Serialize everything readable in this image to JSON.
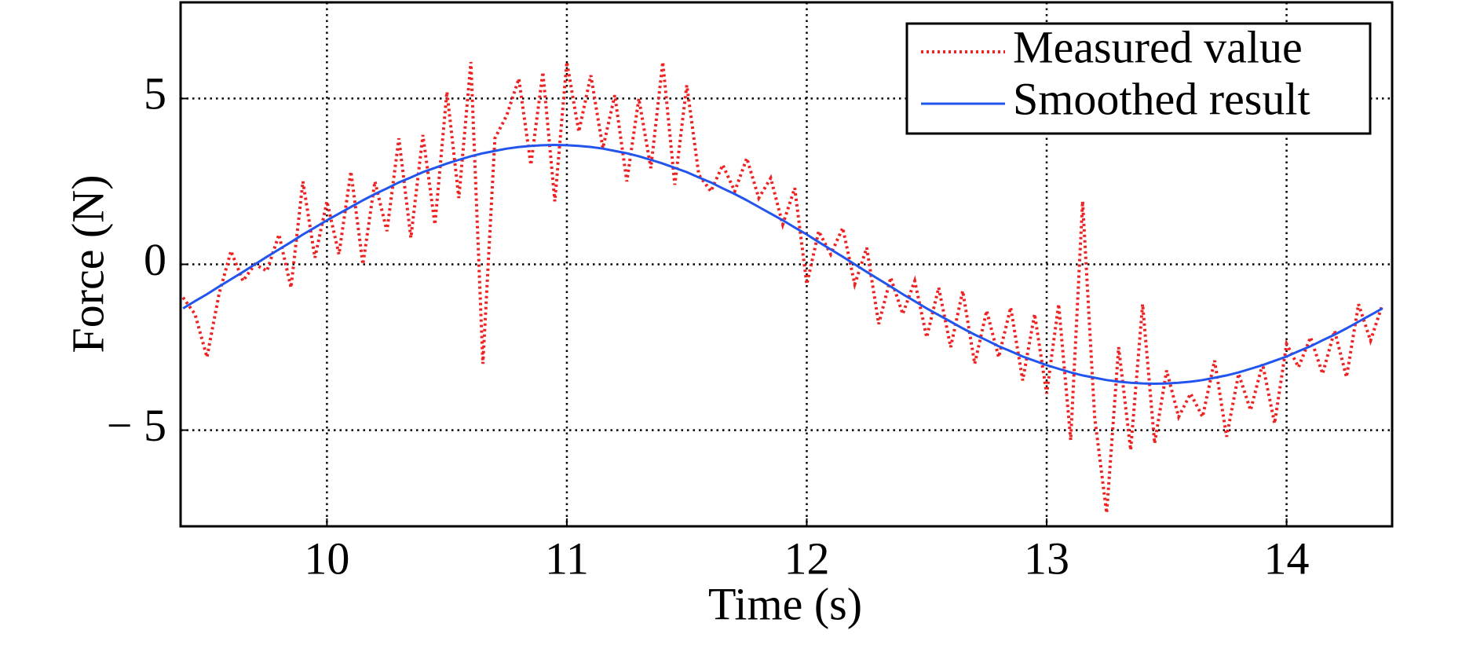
{
  "chart_data": {
    "type": "line",
    "x_label": "Time (s)",
    "y_label": "Force (N)",
    "x": [
      9.4,
      9.45,
      9.5,
      9.55,
      9.6,
      9.65,
      9.7,
      9.75,
      9.8,
      9.85,
      9.9,
      9.95,
      10,
      10.05,
      10.1,
      10.15,
      10.2,
      10.25,
      10.3,
      10.35,
      10.4,
      10.45,
      10.5,
      10.55,
      10.6,
      10.65,
      10.7,
      10.75,
      10.8,
      10.85,
      10.9,
      10.95,
      11,
      11.05,
      11.1,
      11.15,
      11.2,
      11.25,
      11.3,
      11.35,
      11.4,
      11.45,
      11.5,
      11.55,
      11.6,
      11.65,
      11.7,
      11.75,
      11.8,
      11.85,
      11.9,
      11.95,
      12,
      12.05,
      12.1,
      12.15,
      12.2,
      12.25,
      12.3,
      12.35,
      12.4,
      12.45,
      12.5,
      12.55,
      12.6,
      12.65,
      12.7,
      12.75,
      12.8,
      12.85,
      12.9,
      12.95,
      13,
      13.05,
      13.1,
      13.15,
      13.2,
      13.25,
      13.3,
      13.35,
      13.4,
      13.45,
      13.5,
      13.55,
      13.6,
      13.65,
      13.7,
      13.75,
      13.8,
      13.85,
      13.9,
      13.95,
      14,
      14.05,
      14.1,
      14.15,
      14.2,
      14.25,
      14.3,
      14.35,
      14.4
    ],
    "series": [
      {
        "name": "Measured value",
        "color": "#ee2222",
        "dash": "dotted",
        "values": [
          -1.0,
          -1.5,
          -2.8,
          -0.9,
          0.4,
          -0.5,
          0.0,
          -0.2,
          0.9,
          -0.7,
          2.5,
          0.2,
          1.9,
          0.3,
          2.8,
          0.0,
          2.5,
          1.0,
          3.8,
          0.8,
          3.9,
          1.2,
          5.2,
          2.0,
          6.1,
          -3.0,
          3.8,
          4.5,
          5.6,
          3.0,
          5.8,
          1.9,
          6.1,
          4.0,
          5.7,
          3.5,
          5.1,
          2.5,
          5.0,
          2.9,
          6.1,
          2.4,
          5.4,
          2.7,
          2.2,
          3.0,
          2.2,
          3.2,
          2.0,
          2.6,
          1.2,
          2.3,
          -0.6,
          1.0,
          0.3,
          1.1,
          -0.6,
          0.5,
          -1.8,
          -0.4,
          -1.5,
          -0.5,
          -2.2,
          -0.7,
          -2.5,
          -0.8,
          -3.0,
          -1.4,
          -2.8,
          -1.3,
          -3.5,
          -1.5,
          -3.9,
          -1.2,
          -5.3,
          1.9,
          -4.6,
          -7.5,
          -2.5,
          -5.6,
          -1.2,
          -5.4,
          -3.2,
          -4.6,
          -3.9,
          -4.6,
          -2.9,
          -5.2,
          -3.3,
          -4.4,
          -3.0,
          -4.8,
          -2.4,
          -3.1,
          -2.2,
          -3.3,
          -2.0,
          -3.4,
          -1.2,
          -2.3,
          -1.2
        ]
      },
      {
        "name": "Smoothed result",
        "color": "#2255ee",
        "dash": "solid",
        "values": [
          -1.33,
          -1.11,
          -0.9,
          -0.67,
          -0.45,
          -0.23,
          0,
          0.23,
          0.45,
          0.67,
          0.9,
          1.11,
          1.33,
          1.53,
          1.73,
          1.93,
          2.12,
          2.29,
          2.47,
          2.62,
          2.78,
          2.91,
          3.04,
          3.15,
          3.26,
          3.35,
          3.42,
          3.49,
          3.54,
          3.57,
          3.59,
          3.6,
          3.59,
          3.57,
          3.54,
          3.49,
          3.42,
          3.35,
          3.26,
          3.15,
          3.04,
          2.91,
          2.78,
          2.62,
          2.47,
          2.29,
          2.12,
          1.93,
          1.73,
          1.53,
          1.33,
          1.11,
          0.9,
          0.67,
          0.45,
          0.23,
          0,
          -0.23,
          -0.45,
          -0.67,
          -0.9,
          -1.11,
          -1.33,
          -1.53,
          -1.73,
          -1.93,
          -2.12,
          -2.29,
          -2.47,
          -2.62,
          -2.78,
          -2.91,
          -3.04,
          -3.15,
          -3.26,
          -3.35,
          -3.42,
          -3.49,
          -3.54,
          -3.57,
          -3.59,
          -3.6,
          -3.59,
          -3.57,
          -3.54,
          -3.49,
          -3.42,
          -3.35,
          -3.26,
          -3.15,
          -3.04,
          -2.91,
          -2.78,
          -2.62,
          -2.47,
          -2.29,
          -2.12,
          -1.93,
          -1.73,
          -1.53,
          -1.33
        ]
      }
    ],
    "xlim": [
      9.39,
      14.44
    ],
    "xticks": [
      10,
      11,
      12,
      13,
      14
    ],
    "ylim": [
      -7.9,
      7.9
    ],
    "yticks": [
      {
        "value": -5,
        "label": "− 5"
      },
      0,
      5
    ],
    "grid": true,
    "legend": "upper right"
  }
}
